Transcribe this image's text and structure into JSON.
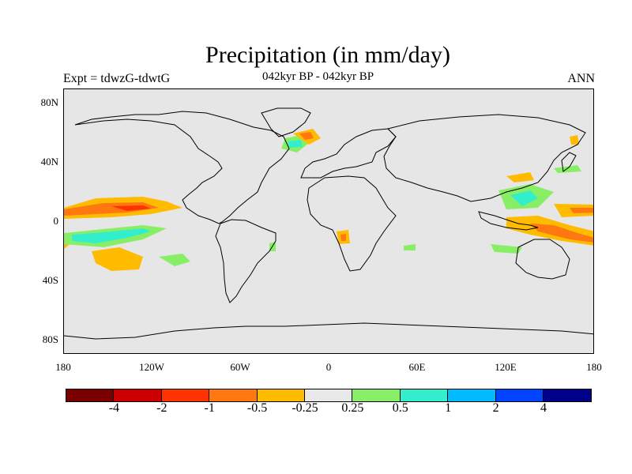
{
  "title": "Precipitation (in mm/day)",
  "experiment": "Expt = tdwzG-tdwtG",
  "period": "042kyr BP - 042kyr BP",
  "season": "ANN",
  "lat_ticks": [
    "80N",
    "40N",
    "0",
    "40S",
    "80S"
  ],
  "lon_ticks": [
    "180",
    "120W",
    "60W",
    "0",
    "60E",
    "120E",
    "180"
  ],
  "colorbar": {
    "colors": [
      "#7a0000",
      "#cc0000",
      "#ff3300",
      "#ff7711",
      "#ffbb00",
      "#e8e8e8",
      "#88ee66",
      "#33eecc",
      "#00bbff",
      "#0044ff",
      "#000088"
    ],
    "labels": [
      "-4",
      "-2",
      "-1",
      "-0.5",
      "-0.25",
      "0.25",
      "0.5",
      "1",
      "2",
      "4"
    ]
  },
  "colors": {
    "background": "#e6e6e6",
    "coast": "#000000"
  }
}
